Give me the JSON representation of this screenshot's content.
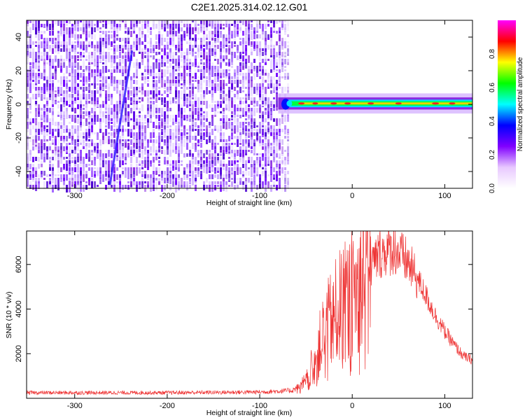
{
  "title": "C2E1.2025.314.02.12.G01",
  "chart_data": [
    {
      "type": "heatmap",
      "xlabel": "Height of straight line (km)",
      "ylabel": "Frequency (Hz)",
      "xlim": [
        -352,
        130
      ],
      "ylim": [
        -50,
        50
      ],
      "xticks": [
        -300,
        -200,
        -100,
        0,
        100
      ],
      "yticks": [
        -40,
        -20,
        0,
        20,
        40
      ],
      "noise_region_x": [
        -352,
        -68
      ],
      "signal_band": {
        "x_start": -80,
        "x_end": 130,
        "center_frequency": 0.5,
        "half_width": 3
      },
      "streak": {
        "x_from": -262,
        "y_from": -48,
        "x_to": -238,
        "y_to": 32
      },
      "colorbar": {
        "label": "Normalized spectral amplitude",
        "range": [
          0.0,
          1.0
        ],
        "ticks": [
          "0.0",
          "0.2",
          "0.4",
          "0.6",
          "0.8"
        ],
        "colors": [
          "#ffffff",
          "#e8c8ff",
          "#8000ff",
          "#0000ff",
          "#00ffff",
          "#00ff00",
          "#ffff00",
          "#ff0000",
          "#ff00ff"
        ]
      },
      "grid": false
    },
    {
      "type": "line",
      "xlabel": "Height of straight line (km)",
      "ylabel": "SNR (10 * v/v)",
      "xlim": [
        -352,
        130
      ],
      "ylim": [
        0,
        7500
      ],
      "xticks": [
        -300,
        -200,
        -100,
        0,
        100
      ],
      "yticks": [
        2000,
        4000,
        6000
      ],
      "color": "#ee3333",
      "envelope": [
        [
          -352,
          250
        ],
        [
          -200,
          250
        ],
        [
          -100,
          280
        ],
        [
          -65,
          350
        ],
        [
          -50,
          700
        ],
        [
          -40,
          1800
        ],
        [
          -30,
          3000
        ],
        [
          -15,
          4000
        ],
        [
          0,
          4600
        ],
        [
          15,
          5600
        ],
        [
          30,
          6500
        ],
        [
          45,
          6700
        ],
        [
          60,
          6100
        ],
        [
          75,
          5000
        ],
        [
          90,
          3700
        ],
        [
          100,
          3000
        ],
        [
          110,
          2400
        ],
        [
          120,
          1900
        ],
        [
          130,
          1700
        ]
      ],
      "grid": false
    }
  ]
}
